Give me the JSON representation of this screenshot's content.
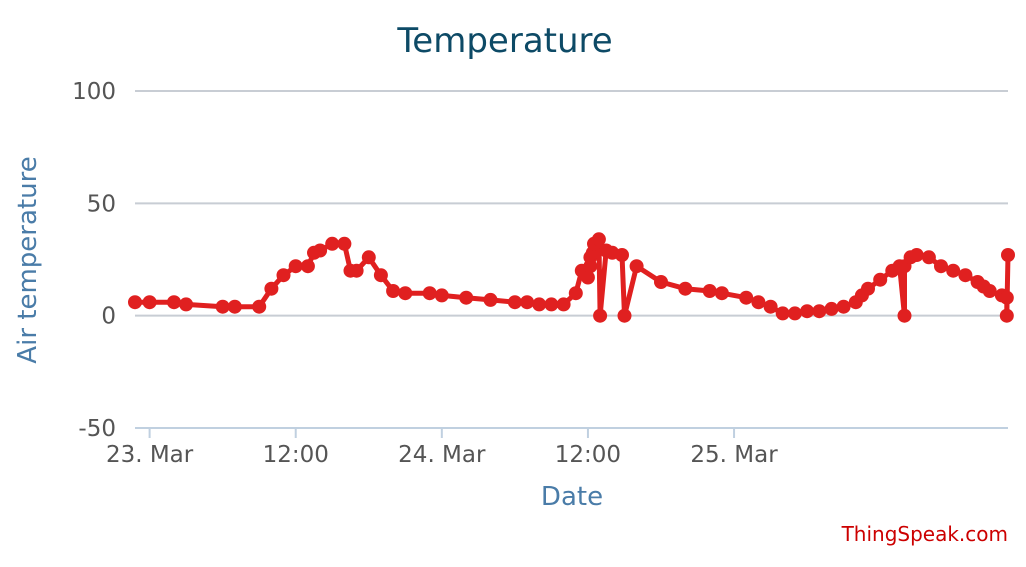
{
  "chart_data": {
    "type": "line",
    "title": "Temperature",
    "xlabel": "Date",
    "ylabel": "Air temperature",
    "ylim": [
      -50,
      100
    ],
    "yticks": [
      100,
      50,
      0,
      -50
    ],
    "xlim": [
      "2023-03-22T22:48",
      "2023-03-25T22:30"
    ],
    "xticks": [
      {
        "value": "2023-03-23T00:00",
        "label": "23. Mar"
      },
      {
        "value": "2023-03-23T12:00",
        "label": "12:00"
      },
      {
        "value": "2023-03-24T00:00",
        "label": "24. Mar"
      },
      {
        "value": "2023-03-24T12:00",
        "label": "12:00"
      },
      {
        "value": "2023-03-25T00:00",
        "label": "25. Mar"
      }
    ],
    "grid": true,
    "colors": {
      "series": "#e02020",
      "grid": "#c8cdd4",
      "axis": "#c0d0e0"
    },
    "series": [
      {
        "x": [
          "2023-03-22T22:48",
          "2023-03-23T00:00",
          "2023-03-23T02:00",
          "2023-03-23T03:00",
          "2023-03-23T06:00",
          "2023-03-23T07:00",
          "2023-03-23T09:00",
          "2023-03-23T10:00",
          "2023-03-23T11:00",
          "2023-03-23T12:00",
          "2023-03-23T13:00",
          "2023-03-23T13:30",
          "2023-03-23T14:00",
          "2023-03-23T15:00",
          "2023-03-23T16:00",
          "2023-03-23T16:30",
          "2023-03-23T17:00",
          "2023-03-23T18:00",
          "2023-03-23T19:00",
          "2023-03-23T20:00",
          "2023-03-23T21:00",
          "2023-03-23T23:00",
          "2023-03-24T00:00",
          "2023-03-24T02:00",
          "2023-03-24T04:00",
          "2023-03-24T06:00",
          "2023-03-24T07:00",
          "2023-03-24T08:00",
          "2023-03-24T09:00",
          "2023-03-24T10:00",
          "2023-03-24T11:00",
          "2023-03-24T11:30",
          "2023-03-24T12:00",
          "2023-03-24T12:12",
          "2023-03-24T12:12",
          "2023-03-24T12:24",
          "2023-03-24T12:30",
          "2023-03-24T12:54",
          "2023-03-24T13:00",
          "2023-03-24T13:30",
          "2023-03-24T14:00",
          "2023-03-24T14:48",
          "2023-03-24T15:00",
          "2023-03-24T16:00",
          "2023-03-24T18:00",
          "2023-03-24T20:00",
          "2023-03-24T22:00",
          "2023-03-24T23:00",
          "2023-03-25T01:00",
          "2023-03-25T02:00",
          "2023-03-25T03:00",
          "2023-03-25T04:00",
          "2023-03-25T05:00",
          "2023-03-25T06:00",
          "2023-03-25T07:00",
          "2023-03-25T08:00",
          "2023-03-25T09:00",
          "2023-03-25T10:00",
          "2023-03-25T10:30",
          "2023-03-25T11:00",
          "2023-03-25T12:00",
          "2023-03-25T13:00",
          "2023-03-25T13:36",
          "2023-03-25T14:00",
          "2023-03-25T14:00",
          "2023-03-25T14:30",
          "2023-03-25T15:00",
          "2023-03-25T16:00",
          "2023-03-25T17:00",
          "2023-03-25T18:00",
          "2023-03-25T19:00",
          "2023-03-25T20:00",
          "2023-03-25T20:30",
          "2023-03-25T21:00",
          "2023-03-25T22:00",
          "2023-03-25T22:24",
          "2023-03-25T22:24",
          "2023-03-25T22:30"
        ],
        "y": [
          6,
          6,
          6,
          5,
          4,
          4,
          4,
          12,
          18,
          22,
          22,
          28,
          29,
          32,
          32,
          20,
          20,
          26,
          18,
          11,
          10,
          10,
          9,
          8,
          7,
          6,
          6,
          5,
          5,
          5,
          10,
          20,
          17,
          22,
          26,
          28,
          32,
          34,
          0,
          29,
          28,
          27,
          0,
          22,
          15,
          12,
          11,
          10,
          8,
          6,
          4,
          1,
          1,
          2,
          2,
          3,
          4,
          6,
          9,
          12,
          16,
          20,
          22,
          0,
          22,
          26,
          27,
          26,
          22,
          20,
          18,
          15,
          13,
          11,
          9,
          8,
          0,
          27
        ]
      }
    ]
  },
  "watermark": "ThingSpeak.com"
}
